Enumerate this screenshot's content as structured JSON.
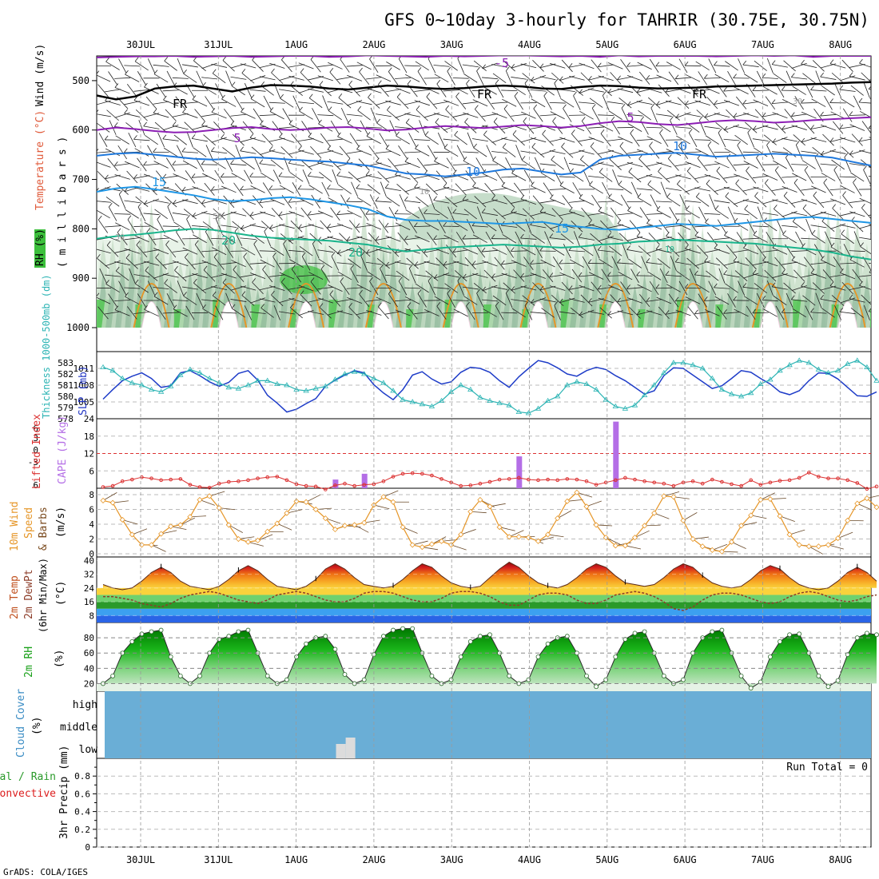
{
  "title": "GFS 0~10day 3-hourly for TAHRIR (30.75E, 30.75N)",
  "credit": "GrADS: COLA/IGES",
  "date_labels": [
    "30JUL",
    "31JUL",
    "1AUG",
    "2AUG",
    "3AUG",
    "4AUG",
    "5AUG",
    "6AUG",
    "7AUG",
    "8AUG"
  ],
  "colors": {
    "rh_green": "#3cc03c",
    "temp_contour": "#1e78dc",
    "freeze_line": "#000000",
    "cold_contour": "#8c1eb4",
    "slp": "#1e3cc8",
    "thickness": "#2cb4b4",
    "cape": "#b46ee6",
    "lifted_index": "#dc3232",
    "wind_speed": "#e69628",
    "dewpoint": "#8c3c28",
    "rh_fill": "#19b419",
    "cloud": "#6aaed6",
    "precip_rain": "#2a9a2a",
    "precip_convective": "#dc1e1e"
  },
  "chart_data": [
    {
      "type": "heatmap",
      "panel": "upper-air",
      "ylabel_parts": [
        "RH (%)",
        "Temperature (°C)",
        "Wind (m/s)"
      ],
      "ylabel_units": "( m i l l i b a r s )",
      "yticks": [
        500,
        600,
        700,
        800,
        900,
        1000
      ],
      "ylim": [
        450,
        1000
      ],
      "contour_labels": [
        "-5",
        "FR",
        "FR",
        "FR",
        "5",
        "5",
        "10",
        "10",
        "15",
        "15",
        "20",
        "20",
        "10",
        "30",
        "50",
        "10",
        "30"
      ],
      "isotherms": [
        {
          "name": "-5",
          "p": [
            453,
            452,
            451,
            451,
            450,
            452,
            451,
            450,
            452,
            451,
            450,
            450,
            452,
            451,
            449,
            450,
            451,
            452,
            450,
            451,
            450,
            449,
            449,
            450,
            451,
            450,
            452,
            449,
            451,
            450,
            450,
            450,
            451,
            450,
            449,
            450,
            449,
            452,
            450,
            450,
            450
          ]
        },
        {
          "name": "FR",
          "p": [
            530,
            538,
            532,
            516,
            512,
            510,
            516,
            522,
            514,
            509,
            510,
            512,
            516,
            518,
            514,
            510,
            512,
            515,
            517,
            515,
            512,
            510,
            512,
            516,
            517,
            513,
            510,
            511,
            514,
            516,
            515,
            514,
            512,
            511,
            510,
            509,
            508,
            507,
            506,
            504,
            503
          ]
        },
        {
          "name": "5",
          "p": [
            600,
            595,
            598,
            602,
            605,
            604,
            600,
            596,
            594,
            598,
            600,
            598,
            595,
            594,
            597,
            601,
            599,
            595,
            592,
            594,
            596,
            593,
            590,
            592,
            595,
            592,
            586,
            582,
            584,
            588,
            590,
            586,
            582,
            580,
            582,
            585,
            583,
            580,
            578,
            576,
            574
          ]
        },
        {
          "name": "10",
          "p": [
            652,
            648,
            646,
            650,
            654,
            658,
            660,
            658,
            655,
            657,
            660,
            662,
            664,
            668,
            672,
            680,
            688,
            690,
            694,
            690,
            686,
            680,
            678,
            684,
            690,
            686,
            660,
            652,
            650,
            648,
            646,
            650,
            654,
            652,
            650,
            648,
            650,
            652,
            656,
            664,
            672
          ]
        },
        {
          "name": "15",
          "p": [
            725,
            718,
            715,
            720,
            726,
            732,
            740,
            744,
            742,
            738,
            736,
            740,
            746,
            752,
            760,
            775,
            782,
            784,
            784,
            786,
            788,
            790,
            788,
            786,
            792,
            796,
            800,
            802,
            798,
            794,
            790,
            792,
            794,
            790,
            786,
            782,
            778,
            776,
            780,
            784,
            788
          ]
        },
        {
          "name": "20",
          "p": [
            820,
            815,
            812,
            808,
            803,
            800,
            802,
            808,
            814,
            818,
            820,
            822,
            824,
            828,
            832,
            840,
            846,
            842,
            838,
            836,
            834,
            832,
            834,
            836,
            838,
            836,
            832,
            830,
            826,
            824,
            822,
            824,
            826,
            828,
            830,
            834,
            838,
            842,
            848,
            856,
            862
          ]
        }
      ]
    },
    {
      "type": "line",
      "panel": "slp-thickness",
      "ylabel": "SLP (mb)",
      "ylabel2": "Thickness 1000-500mb (dm)",
      "yticks_slp": [
        1005,
        1008,
        1011
      ],
      "yticks_thick": [
        578,
        579,
        580,
        581,
        582,
        583
      ],
      "ylim_slp": [
        1002,
        1014
      ],
      "ylim_thick": [
        578,
        584
      ],
      "series": [
        {
          "name": "SLP",
          "values": [
            1005.5,
            1007.2,
            1008.8,
            1009.6,
            1010.2,
            1009.2,
            1007.6,
            1007.9,
            1010.2,
            1010.6,
            1009.7,
            1008.6,
            1007.8,
            1008.5,
            1010.1,
            1010.6,
            1008.9,
            1006.2,
            1004.8,
            1003.2,
            1003.7,
            1004.7,
            1005.6,
            1007.8,
            1008.9,
            1009.8,
            1010.6,
            1010.2,
            1008.1,
            1006.6,
            1005.4,
            1007.2,
            1009.8,
            1010.4,
            1009.1,
            1008.2,
            1008.6,
            1010.3,
            1011.2,
            1011.0,
            1010.3,
            1008.8,
            1007.6,
            1009.5,
            1011.0,
            1012.4,
            1012.0,
            1011.1,
            1010.0,
            1009.6,
            1010.6,
            1011.2,
            1010.8,
            1009.7,
            1008.8,
            1007.6,
            1006.4,
            1007.0,
            1009.7,
            1011.1,
            1011.0,
            1009.8,
            1008.6,
            1007.4,
            1007.9,
            1009.2,
            1010.6,
            1010.3,
            1009.2,
            1008.2,
            1006.8,
            1006.3,
            1007.0,
            1008.8,
            1010.2,
            1010.1,
            1009.1,
            1007.6,
            1006.1,
            1006.0,
            1006.8
          ]
        },
        {
          "name": "Thickness",
          "values": [
            582.6,
            582.3,
            581.6,
            581.2,
            581.0,
            580.6,
            580.4,
            580.9,
            581.9,
            582.4,
            582.1,
            581.6,
            581.2,
            580.8,
            580.7,
            581.0,
            581.4,
            581.4,
            581.1,
            581.0,
            580.6,
            580.5,
            580.7,
            580.9,
            581.5,
            582.0,
            582.2,
            582.0,
            581.6,
            581.2,
            580.5,
            579.7,
            579.5,
            579.3,
            579.1,
            579.6,
            580.4,
            581.0,
            580.6,
            579.9,
            579.6,
            579.4,
            579.2,
            578.6,
            578.5,
            578.9,
            579.6,
            580.0,
            581.0,
            581.3,
            581.1,
            580.6,
            579.7,
            579.1,
            578.9,
            579.2,
            580.1,
            581.0,
            582.1,
            583.0,
            583.0,
            582.8,
            582.5,
            581.6,
            580.6,
            580.2,
            580.0,
            580.3,
            581.1,
            581.5,
            582.3,
            582.8,
            583.2,
            583.0,
            582.4,
            582.1,
            582.3,
            582.9,
            583.2,
            582.6,
            581.4
          ]
        }
      ]
    },
    {
      "type": "bar",
      "panel": "cape-li",
      "ylabel": "CAPE (J/kg)",
      "ylabel2": "Lifted Index",
      "yticks_cape": [
        6,
        12,
        18,
        24
      ],
      "yticks_li": [
        -3,
        0,
        3,
        6
      ],
      "li_inner_ticks": [
        "3",
        "0",
        "-3"
      ],
      "li_end_tick": "6",
      "ylim_cape": [
        0,
        24
      ],
      "ylim_li": [
        6,
        -6
      ],
      "cape_bars": [
        {
          "x": 24,
          "value": 3
        },
        {
          "x": 27,
          "value": 5
        },
        {
          "x": 43,
          "value": 11
        },
        {
          "x": 53,
          "value": 23
        }
      ],
      "lifted_index": [
        5.8,
        5.6,
        4.8,
        4.5,
        4.1,
        4.3,
        4.6,
        4.5,
        4.4,
        5.4,
        5.8,
        5.9,
        5.2,
        4.9,
        4.8,
        4.6,
        4.3,
        4.1,
        4.0,
        4.6,
        5.3,
        5.6,
        5.7,
        6.2,
        5.5,
        5.2,
        5.6,
        5.4,
        5.3,
        4.8,
        4.0,
        3.5,
        3.4,
        3.5,
        3.8,
        4.4,
        5.0,
        5.6,
        5.5,
        5.2,
        4.9,
        4.5,
        4.4,
        4.2,
        4.5,
        4.6,
        4.5,
        4.6,
        4.4,
        4.5,
        4.8,
        5.4,
        5.0,
        4.6,
        4.2,
        4.5,
        4.8,
        5.0,
        5.2,
        5.6,
        5.0,
        4.8,
        5.2,
        4.5,
        4.9,
        5.3,
        5.6,
        4.6,
        5.4,
        5.0,
        4.7,
        4.6,
        4.2,
        3.3,
        4.0,
        4.3,
        4.3,
        4.6,
        5.1,
        6.1,
        5.7
      ]
    },
    {
      "type": "line",
      "panel": "wind",
      "ylabel_parts": [
        "10m Wind",
        "Speed",
        "& Barbs",
        "(m/s)"
      ],
      "yticks": [
        0,
        2,
        4,
        6,
        8
      ],
      "ylim": [
        0,
        8
      ],
      "series": [
        {
          "name": "10m Wind Speed",
          "values": [
            7.2,
            6.9,
            4.6,
            2.6,
            1.2,
            1.2,
            2.7,
            3.7,
            3.9,
            5.0,
            7.3,
            7.8,
            6.2,
            3.9,
            2.0,
            1.6,
            1.8,
            3.0,
            4.1,
            5.5,
            7.1,
            7.0,
            6.0,
            4.8,
            3.3,
            3.8,
            3.9,
            4.2,
            6.6,
            7.7,
            7.0,
            3.6,
            1.2,
            0.9,
            1.3,
            1.7,
            1.2,
            2.6,
            5.7,
            7.3,
            6.4,
            3.6,
            2.3,
            2.3,
            2.2,
            1.7,
            2.6,
            4.8,
            7.1,
            8.3,
            6.4,
            3.9,
            2.2,
            1.1,
            1.1,
            2.2,
            3.8,
            5.5,
            7.8,
            7.7,
            4.5,
            2.0,
            1.0,
            0.5,
            0.3,
            1.6,
            3.8,
            5.2,
            7.3,
            7.4,
            5.1,
            2.6,
            1.2,
            1.0,
            1.0,
            1.2,
            2.1,
            4.5,
            6.8,
            7.5,
            6.3
          ]
        }
      ]
    },
    {
      "type": "area",
      "panel": "temperature",
      "ylabel_parts": [
        "2m Temp",
        "2m DewPt",
        "(6hr Min/Max)",
        "(°C)"
      ],
      "yticks": [
        8,
        16,
        24,
        32,
        40
      ],
      "ylim": [
        4,
        42
      ],
      "series": [
        {
          "name": "2m Temp",
          "values": [
            26,
            24,
            23,
            24,
            28,
            33,
            36,
            33,
            28,
            25,
            24,
            23,
            25,
            29,
            34,
            37,
            34,
            29,
            25,
            24,
            23,
            25,
            29,
            35,
            38,
            35,
            30,
            26,
            25,
            24,
            25,
            29,
            34,
            38,
            36,
            31,
            27,
            25,
            24,
            25,
            30,
            35,
            39,
            36,
            31,
            27,
            25,
            24,
            26,
            30,
            35,
            38,
            36,
            31,
            27,
            26,
            25,
            26,
            30,
            35,
            38,
            36,
            31,
            27,
            25,
            24,
            25,
            29,
            34,
            37,
            35,
            30,
            26,
            24,
            23,
            24,
            28,
            33,
            36,
            33,
            28
          ]
        },
        {
          "name": "2m DewPt",
          "values": [
            19,
            19,
            18,
            17,
            15,
            14,
            13,
            15,
            18,
            20,
            21,
            22,
            21,
            19,
            17,
            16,
            15,
            17,
            20,
            21,
            22,
            21,
            19,
            17,
            16,
            16,
            18,
            21,
            22,
            22,
            21,
            19,
            17,
            16,
            16,
            18,
            21,
            22,
            22,
            21,
            19,
            16,
            14,
            14,
            17,
            20,
            21,
            21,
            20,
            17,
            15,
            15,
            17,
            20,
            21,
            22,
            21,
            19,
            16,
            12,
            11,
            13,
            17,
            20,
            21,
            21,
            20,
            18,
            16,
            15,
            16,
            19,
            21,
            22,
            21,
            19,
            17,
            16,
            17,
            19,
            20
          ]
        }
      ]
    },
    {
      "type": "area",
      "panel": "rh",
      "ylabel": "2m RH",
      "ylabel2": "(%)",
      "yticks": [
        20,
        40,
        60,
        80
      ],
      "ylim": [
        10,
        100
      ],
      "series": [
        {
          "name": "2m RH",
          "values": [
            20,
            30,
            60,
            75,
            85,
            88,
            90,
            55,
            30,
            20,
            30,
            60,
            78,
            82,
            88,
            90,
            60,
            30,
            20,
            25,
            55,
            72,
            80,
            82,
            65,
            32,
            20,
            25,
            58,
            82,
            90,
            92,
            92,
            60,
            30,
            20,
            25,
            55,
            75,
            82,
            84,
            60,
            30,
            20,
            25,
            55,
            72,
            80,
            82,
            60,
            30,
            16,
            25,
            55,
            78,
            86,
            88,
            60,
            30,
            20,
            25,
            60,
            80,
            88,
            90,
            60,
            30,
            14,
            22,
            55,
            75,
            84,
            85,
            60,
            30,
            16,
            24,
            58,
            80,
            86,
            84
          ]
        }
      ]
    },
    {
      "type": "bar",
      "panel": "cloud",
      "ylabel": "Cloud Cover",
      "ylabel2": "(%)",
      "levels": [
        "high",
        "middle",
        "low"
      ],
      "low_cloud": [
        {
          "x": 25,
          "value": 2
        },
        {
          "x": 26,
          "value": 3
        }
      ]
    },
    {
      "type": "bar",
      "panel": "precip",
      "ylabel": "3hr Precip (mm)",
      "ylabel_total_rain": "Total / Rain",
      "ylabel_convective": "Convective",
      "yticks": [
        0,
        0.2,
        0.4,
        0.6,
        0.8
      ],
      "ylim": [
        0,
        1
      ],
      "run_total": "Run Total = 0",
      "values": []
    }
  ]
}
